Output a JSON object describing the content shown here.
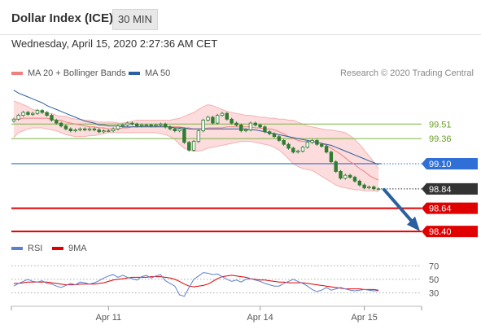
{
  "header": {
    "title": "Dollar Index (ICE)",
    "timeframe": "30 MIN"
  },
  "date_line": "Wednesday, April 15, 2020 2:27:36 AM CET",
  "legend_price": [
    {
      "label": "MA 20 + Bollinger Bands",
      "color": "#f08080"
    },
    {
      "label": "MA 50",
      "color": "#2a5fa0"
    }
  ],
  "credit": "Research © 2020 Trading Central",
  "legend_rsi": [
    {
      "label": "RSI",
      "color": "#5b7fd1"
    },
    {
      "label": "9MA",
      "color": "#e00000"
    }
  ],
  "colors": {
    "candle": "#2e7d32",
    "band_fill": "#fbd6d6",
    "ma20": "#f08080",
    "ma50": "#2a5fa0",
    "resistance": "#7cb342",
    "pivot": "#2f6fd6",
    "support": "#e00000",
    "last": "#333333",
    "rsi": "#5b7fd1",
    "rsi_ma": "#e00000"
  },
  "chart_data": [
    {
      "type": "candlestick",
      "title": "Dollar Index (ICE)",
      "timeframe": "30 MIN",
      "x_labels": [
        "Apr 11",
        "Apr 14",
        "Apr 15"
      ],
      "ylim": [
        98.35,
        99.95
      ],
      "closes": [
        99.56,
        99.6,
        99.63,
        99.61,
        99.62,
        99.65,
        99.63,
        99.6,
        99.55,
        99.52,
        99.49,
        99.46,
        99.44,
        99.45,
        99.46,
        99.45,
        99.46,
        99.45,
        99.43,
        99.44,
        99.44,
        99.46,
        99.49,
        99.5,
        99.52,
        99.51,
        99.49,
        99.5,
        99.5,
        99.49,
        99.5,
        99.51,
        99.48,
        99.46,
        99.44,
        99.46,
        99.32,
        99.24,
        99.33,
        99.44,
        99.55,
        99.58,
        99.52,
        99.6,
        99.62,
        99.56,
        99.52,
        99.5,
        99.44,
        99.45,
        99.52,
        99.5,
        99.48,
        99.43,
        99.41,
        99.38,
        99.34,
        99.3,
        99.26,
        99.22,
        99.23,
        99.27,
        99.32,
        99.34,
        99.3,
        99.28,
        99.22,
        99.12,
        99.02,
        98.95,
        98.98,
        98.96,
        98.92,
        98.88,
        98.85,
        98.86,
        98.84,
        98.84
      ],
      "ma20": [
        99.56,
        99.56,
        99.57,
        99.57,
        99.57,
        99.57,
        99.57,
        99.57,
        99.56,
        99.55,
        99.55,
        99.53,
        99.52,
        99.51,
        99.5,
        99.49,
        99.48,
        99.48,
        99.47,
        99.47,
        99.46,
        99.46,
        99.46,
        99.47,
        99.47,
        99.48,
        99.48,
        99.49,
        99.49,
        99.49,
        99.49,
        99.49,
        99.49,
        99.48,
        99.48,
        99.48,
        99.47,
        99.47,
        99.46,
        99.46,
        99.46,
        99.47,
        99.47,
        99.47,
        99.47,
        99.48,
        99.48,
        99.48,
        99.48,
        99.48,
        99.48,
        99.47,
        99.47,
        99.46,
        99.46,
        99.45,
        99.43,
        99.41,
        99.38,
        99.36,
        99.34,
        99.33,
        99.33,
        99.33,
        99.32,
        99.31,
        99.29,
        99.26,
        99.23,
        99.2,
        99.16,
        99.12,
        99.09,
        99.05,
        99.02,
        98.98,
        98.95,
        98.93
      ],
      "upper_band": [
        99.75,
        99.73,
        99.71,
        99.69,
        99.66,
        99.65,
        99.64,
        99.62,
        99.62,
        99.6,
        99.59,
        99.59,
        99.57,
        99.56,
        99.56,
        99.55,
        99.55,
        99.54,
        99.53,
        99.53,
        99.53,
        99.53,
        99.52,
        99.52,
        99.53,
        99.54,
        99.55,
        99.55,
        99.55,
        99.55,
        99.55,
        99.55,
        99.55,
        99.55,
        99.56,
        99.57,
        99.59,
        99.61,
        99.63,
        99.66,
        99.69,
        99.71,
        99.7,
        99.68,
        99.66,
        99.64,
        99.63,
        99.62,
        99.61,
        99.6,
        99.6,
        99.59,
        99.58,
        99.58,
        99.57,
        99.57,
        99.56,
        99.56,
        99.55,
        99.55,
        99.53,
        99.51,
        99.49,
        99.48,
        99.47,
        99.46,
        99.45,
        99.45,
        99.44,
        99.43,
        99.42,
        99.39,
        99.35,
        99.3,
        99.24,
        99.18,
        99.12,
        99.05
      ],
      "lower_band": [
        99.37,
        99.42,
        99.44,
        99.46,
        99.47,
        99.47,
        99.47,
        99.46,
        99.45,
        99.44,
        99.42,
        99.4,
        99.39,
        99.38,
        99.38,
        99.38,
        99.39,
        99.39,
        99.4,
        99.41,
        99.42,
        99.42,
        99.42,
        99.42,
        99.42,
        99.42,
        99.42,
        99.42,
        99.42,
        99.42,
        99.42,
        99.41,
        99.4,
        99.38,
        99.35,
        99.3,
        99.26,
        99.24,
        99.23,
        99.23,
        99.24,
        99.26,
        99.27,
        99.28,
        99.29,
        99.3,
        99.31,
        99.32,
        99.33,
        99.33,
        99.33,
        99.32,
        99.31,
        99.3,
        99.29,
        99.27,
        99.24,
        99.2,
        99.15,
        99.1,
        99.07,
        99.05,
        99.04,
        99.03,
        99.0,
        98.97,
        98.94,
        98.91,
        98.88,
        98.86,
        98.85,
        98.84,
        98.83,
        98.83,
        98.82,
        98.82,
        98.82,
        98.81
      ],
      "ma50": [
        99.86,
        99.83,
        99.81,
        99.79,
        99.77,
        99.75,
        99.73,
        99.7,
        99.68,
        99.66,
        99.64,
        99.62,
        99.6,
        99.58,
        99.56,
        99.54,
        99.53,
        99.52,
        99.5,
        99.5,
        99.49,
        99.49,
        99.49,
        99.48,
        99.48,
        99.48,
        99.48,
        99.48,
        99.48,
        99.48,
        99.48,
        99.48,
        99.48,
        99.48,
        99.47,
        99.47,
        99.47,
        99.46,
        99.46,
        99.46,
        99.46,
        99.46,
        99.46,
        99.46,
        99.46,
        99.46,
        99.46,
        99.46,
        99.46,
        99.46,
        99.45,
        99.45,
        99.44,
        99.43,
        99.42,
        99.41,
        99.4,
        99.39,
        99.38,
        99.37,
        99.36,
        99.35,
        99.34,
        99.33,
        99.32,
        99.31,
        99.3,
        99.29,
        99.27,
        99.25,
        99.23,
        99.21,
        99.19,
        99.17,
        99.15,
        99.13,
        99.11,
        99.09
      ],
      "levels": [
        {
          "label": "99.51",
          "value": 99.51,
          "role": "resistance"
        },
        {
          "label": "99.36",
          "value": 99.36,
          "role": "resistance"
        },
        {
          "label": "99.10",
          "value": 99.1,
          "role": "pivot"
        },
        {
          "label": "98.84",
          "value": 98.84,
          "role": "last"
        },
        {
          "label": "98.64",
          "value": 98.64,
          "role": "support"
        },
        {
          "label": "98.40",
          "value": 98.4,
          "role": "support"
        }
      ],
      "forecast_arrow": {
        "from": 98.84,
        "to": 98.42
      }
    },
    {
      "type": "line",
      "y_ticks": [
        70,
        50,
        30
      ],
      "ylim": [
        15,
        80
      ],
      "series": [
        {
          "name": "RSI",
          "values": [
            40,
            44,
            47,
            50,
            47,
            46,
            48,
            44,
            43,
            40,
            38,
            41,
            44,
            42,
            46,
            45,
            43,
            45,
            48,
            52,
            55,
            57,
            53,
            56,
            53,
            51,
            49,
            54,
            56,
            52,
            55,
            57,
            48,
            44,
            40,
            27,
            25,
            38,
            50,
            55,
            60,
            59,
            57,
            58,
            54,
            50,
            47,
            49,
            46,
            50,
            51,
            49,
            47,
            44,
            42,
            40,
            40,
            44,
            47,
            50,
            47,
            44,
            40,
            35,
            32,
            34,
            38,
            34,
            36,
            38,
            36,
            34,
            33,
            34,
            35,
            34,
            33,
            33
          ]
        },
        {
          "name": "9MA",
          "values": [
            44,
            44,
            45,
            46,
            46,
            46,
            46,
            46,
            45,
            44,
            43,
            42,
            42,
            42,
            43,
            43,
            43,
            43,
            44,
            45,
            47,
            49,
            50,
            51,
            52,
            53,
            53,
            53,
            53,
            54,
            54,
            54,
            53,
            52,
            50,
            47,
            43,
            40,
            39,
            40,
            41,
            43,
            47,
            51,
            54,
            55,
            56,
            55,
            54,
            53,
            51,
            50,
            49,
            49,
            48,
            47,
            46,
            46,
            45,
            45,
            45,
            45,
            44,
            43,
            42,
            41,
            40,
            39,
            38,
            37,
            36,
            36,
            36,
            36,
            35,
            35,
            35,
            34
          ]
        }
      ]
    }
  ]
}
